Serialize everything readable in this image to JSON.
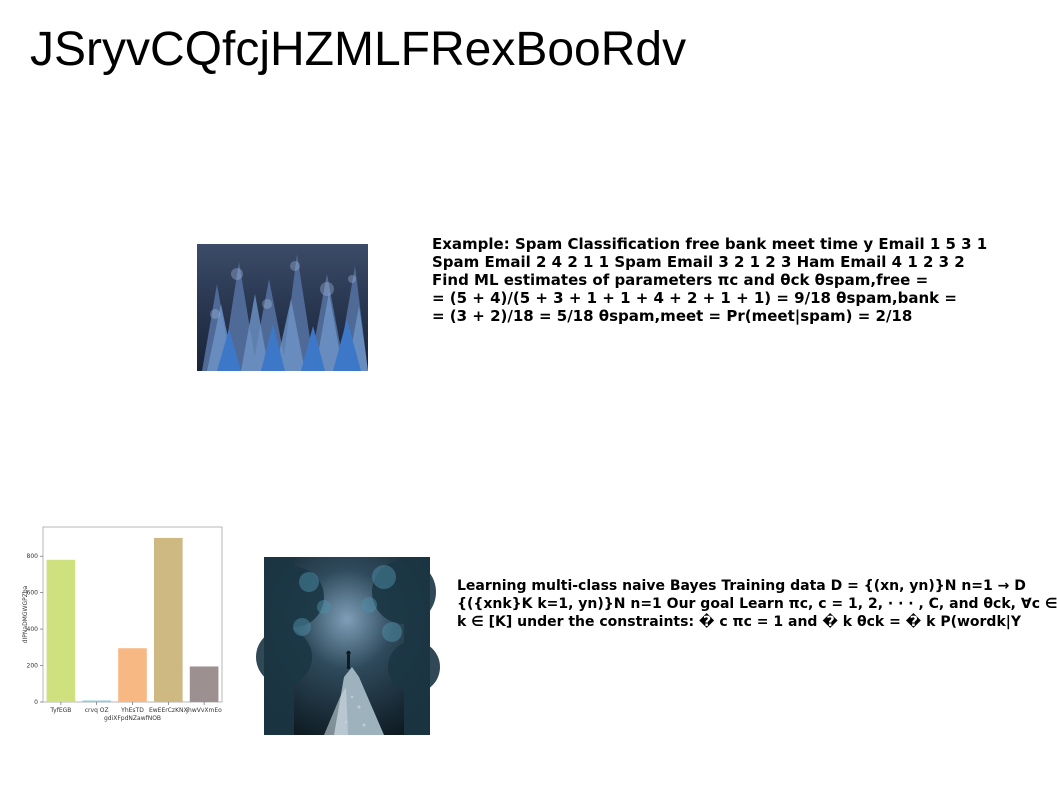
{
  "page": {
    "title": "JSryvCQfcjHZMLFRexBooRdv"
  },
  "images": {
    "forest": {
      "icon": "forest-photo-icon"
    },
    "path": {
      "icon": "forest-path-photo-icon"
    }
  },
  "text_blocks": {
    "spam_example": [
      "Example: Spam Classification free bank meet time y Email 1 5 3 1",
      "Spam Email 2 4 2 1 1 Spam Email 3 2 1 2 3 Ham Email 4 1 2 3 2",
      "Find ML estimates of parameters πc and θck θspam,free =",
      "= (5 + 4)/(5 + 3 + 1 + 1 + 4 + 2 + 1 + 1) = 9/18 θspam,bank =",
      "= (3 + 2)/18 = 5/18 θspam,meet = Pr(meet|spam) = 2/18"
    ],
    "naive_bayes": [
      "Learning multi-class naive Bayes Training data D = {(xn, yn)}N n=1 → D",
      "{({xnk}K k=1, yn)}N n=1 Our goal Learn πc, c = 1, 2, · · · , C, and θck, ∀c ∈",
      "k ∈ [K] under the constraints: � c πc = 1 and � k θck = � k P(wordk|Y"
    ]
  },
  "chart_data": {
    "type": "bar",
    "categories": [
      "TyfEGB",
      "crvq OZ",
      "YhEsTD",
      "EwEErCzKNX",
      "jhwVvXmEo"
    ],
    "values": [
      780,
      8,
      295,
      900,
      195
    ],
    "colors": [
      "#cfe07f",
      "#7fd0e0",
      "#f8b884",
      "#cfb983",
      "#9c9090"
    ],
    "xlabel": "gdiXFpdNZawfNOB",
    "ylabel": "dIPNaDMGWGPZba",
    "yticks": [
      0,
      200,
      400,
      600,
      800
    ],
    "ylim": [
      0,
      960
    ],
    "grid": false
  }
}
